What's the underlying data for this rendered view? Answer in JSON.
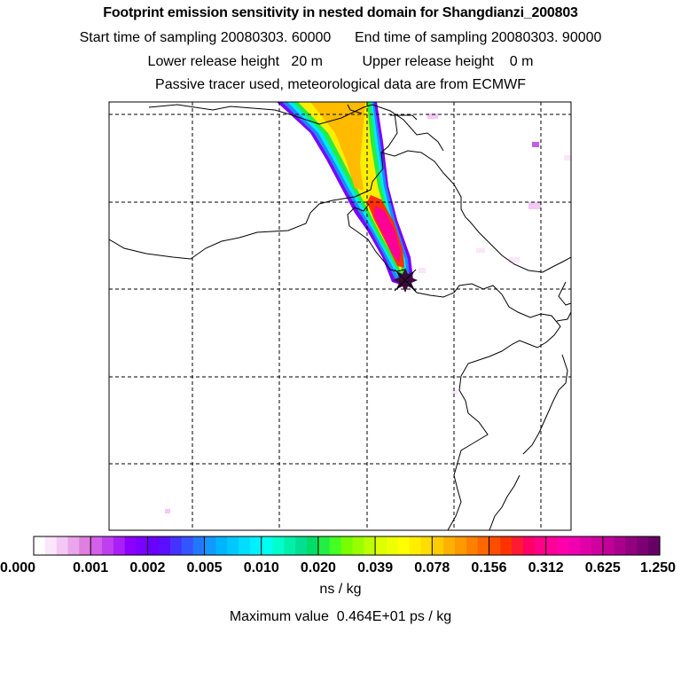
{
  "header": {
    "title": "Footprint emission sensitivity in nested domain for Shangdianzi_200803",
    "line2_start": "Start time of sampling 20080303. 60000",
    "line2_end": "End time of sampling 20080303. 90000",
    "line3_lower": "Lower release height   20 m",
    "line3_upper": "Upper release height    0 m",
    "line4": "Passive tracer used, meteorological data are from ECMWF"
  },
  "colorbar": {
    "tick_labels": [
      "0.000",
      "0.001",
      "0.002",
      "0.005",
      "0.010",
      "0.020",
      "0.039",
      "0.078",
      "0.156",
      "0.312",
      "0.625",
      "1.250"
    ],
    "colors": [
      "#ffffff",
      "#fbe6fb",
      "#f4c8f4",
      "#eaa6ea",
      "#df7fdf",
      "#d45fe8",
      "#bf3ff0",
      "#a91ff5",
      "#8c00ff",
      "#7a00ff",
      "#6a00ff",
      "#5a10ff",
      "#4433ff",
      "#3355ff",
      "#2277ff",
      "#1199ff",
      "#00b4ff",
      "#00c8ff",
      "#00ddff",
      "#00f0ff",
      "#00ffee",
      "#00ffcc",
      "#00f0aa",
      "#00e090",
      "#00dd66",
      "#22ee44",
      "#44ff22",
      "#77ff00",
      "#99ff00",
      "#bbff00",
      "#ddff00",
      "#eeff00",
      "#ffff00",
      "#ffee00",
      "#ffdd00",
      "#ffcc00",
      "#ffb000",
      "#ff9900",
      "#ff8000",
      "#ff6600",
      "#ff4d00",
      "#ff3300",
      "#ff1a33",
      "#ff0066",
      "#ff0088",
      "#ff0099",
      "#ff00aa",
      "#f000b0",
      "#e000a8",
      "#d0009e",
      "#c00098",
      "#a8008c",
      "#920080",
      "#7c0074",
      "#660066"
    ],
    "unit": "ns / kg"
  },
  "footer": {
    "max_value": "Maximum value  0.464E+01 ps / kg"
  },
  "release_site": {
    "marker": "release-site-star"
  }
}
